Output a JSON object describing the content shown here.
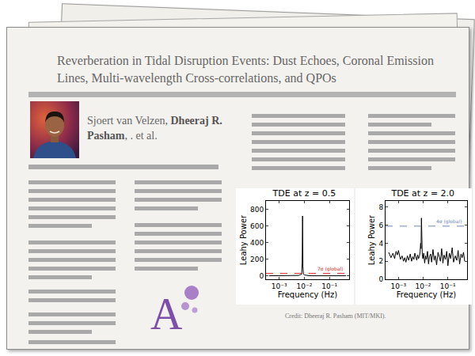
{
  "header": {
    "title_lines": [
      "Reverberation in Tidal Disruption Events: Dust Echoes, Coronal Emission",
      "Lines, Multi-wavelength Cross-correlations, and QPOs"
    ],
    "authors_plain": "Sjoert van Velzen, ",
    "authors_bold": "Dheeraj R. Pasham",
    "authors_tail": ", . et al."
  },
  "logo": "A",
  "credit": "Credit: Dheeraj R. Pasham (MIT/MKI).",
  "chart_data": [
    {
      "type": "line",
      "title": "TDE at z = 0.5",
      "x_label": "Frequency (Hz)",
      "y_label": "Leahy Power",
      "log": "x",
      "x": [
        0.0004,
        0.0006,
        0.0008,
        0.001,
        0.0015,
        0.002,
        0.003,
        0.004,
        0.005,
        0.006,
        0.007,
        0.0078,
        0.0082,
        0.0085,
        0.0088,
        0.0092,
        0.01,
        0.012,
        0.015,
        0.02,
        0.03,
        0.05,
        0.08,
        0.12,
        0.2,
        0.3,
        0.45
      ],
      "series": [
        {
          "color": "#000000",
          "line_style": "solid",
          "values": [
            2,
            3,
            2,
            2,
            3,
            2,
            2,
            3,
            4,
            6,
            15,
            20,
            150,
            720,
            120,
            20,
            12,
            5,
            3,
            2,
            2,
            2,
            2,
            2,
            2,
            2,
            2
          ]
        }
      ],
      "annotations": [
        {
          "text": "7σ (global)",
          "y": 30,
          "color": "#d62728",
          "line_style": "dashed"
        }
      ],
      "xlim": [
        0.0003,
        0.6
      ],
      "xticks": [
        {
          "value": 0.001,
          "label": "10⁻³"
        },
        {
          "value": 0.01,
          "label": "10⁻²"
        },
        {
          "value": 0.1,
          "label": "10⁻¹"
        }
      ],
      "ylim": [
        -40,
        900
      ],
      "yticks": [
        0,
        200,
        400,
        600,
        800
      ],
      "grid": false
    },
    {
      "type": "line",
      "title": "TDE at z = 2.0",
      "x_label": "Frequency (Hz)",
      "y_label": "Leahy Power",
      "log": "x",
      "x": [
        0.0004,
        0.0005,
        0.0006,
        0.0007,
        0.0008,
        0.0009,
        0.001,
        0.0012,
        0.0014,
        0.0016,
        0.0018,
        0.002,
        0.0023,
        0.0026,
        0.003,
        0.0034,
        0.0038,
        0.0042,
        0.0046,
        0.005,
        0.0055,
        0.006,
        0.0065,
        0.007,
        0.0075,
        0.0079,
        0.0082,
        0.0085,
        0.0088,
        0.0092,
        0.0097,
        0.0105,
        0.0115,
        0.0125,
        0.0135,
        0.015,
        0.0165,
        0.018,
        0.02,
        0.022,
        0.025,
        0.028,
        0.031,
        0.035,
        0.04,
        0.045,
        0.05,
        0.056,
        0.063,
        0.07,
        0.08,
        0.09,
        0.1,
        0.115,
        0.13,
        0.15,
        0.17,
        0.2,
        0.23,
        0.26,
        0.3,
        0.34,
        0.38,
        0.43,
        0.48
      ],
      "series": [
        {
          "color": "#000000",
          "line_style": "solid",
          "values": [
            3.0,
            2.4,
            2.9,
            2.3,
            3.1,
            2.7,
            3.2,
            2.2,
            2.6,
            2.0,
            2.4,
            1.9,
            2.6,
            2.1,
            2.8,
            2.0,
            2.5,
            2.2,
            2.9,
            2.4,
            2.1,
            2.7,
            2.3,
            2.5,
            3.0,
            4.0,
            3.4,
            6.8,
            3.0,
            2.8,
            2.3,
            2.9,
            1.8,
            2.6,
            2.2,
            3.1,
            1.7,
            2.5,
            2.8,
            1.9,
            3.3,
            2.1,
            2.6,
            1.6,
            3.0,
            2.4,
            2.0,
            3.4,
            1.8,
            2.7,
            2.2,
            3.1,
            1.5,
            2.9,
            2.3,
            3.5,
            1.9,
            2.6,
            2.1,
            3.2,
            1.7,
            2.8,
            2.4,
            3.0,
            2.0
          ]
        }
      ],
      "annotations": [
        {
          "text": "4σ (global)",
          "y": 5.9,
          "color": "#6f86b8",
          "line_style": "dashed"
        }
      ],
      "xlim": [
        0.0003,
        0.6
      ],
      "xticks": [
        {
          "value": 0.001,
          "label": "10⁻³"
        },
        {
          "value": 0.01,
          "label": "10⁻²"
        },
        {
          "value": 0.1,
          "label": "10⁻¹"
        }
      ],
      "ylim": [
        0,
        8.7
      ],
      "yticks": [
        0,
        2,
        4,
        6,
        8
      ],
      "grid": false
    }
  ]
}
